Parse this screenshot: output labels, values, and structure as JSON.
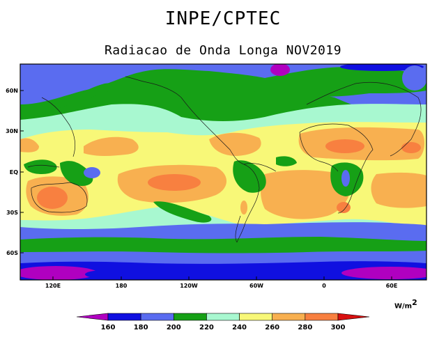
{
  "header": {
    "title": "INPE/CPTEC",
    "subtitle": "Radiacao de Onda Longa NOV2019"
  },
  "map": {
    "lat_labels": [
      "60N",
      "30N",
      "EQ",
      "30S",
      "60S"
    ],
    "lon_labels": [
      "120E",
      "180",
      "120W",
      "60W",
      "0",
      "60E"
    ]
  },
  "colorbar": {
    "units_base": "W/m",
    "units_exp": "2",
    "ticks": [
      "160",
      "180",
      "200",
      "220",
      "240",
      "260",
      "280",
      "300"
    ],
    "colors": [
      "#b000c0",
      "#1010e0",
      "#5a6cf0",
      "#16a016",
      "#a8f8d0",
      "#f8f878",
      "#f8b050",
      "#f88040",
      "#d81010"
    ]
  }
}
